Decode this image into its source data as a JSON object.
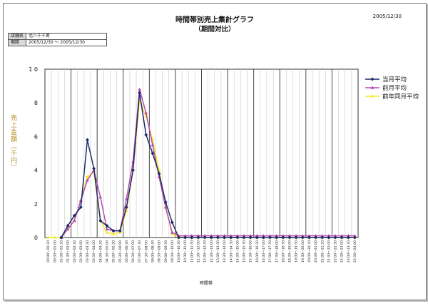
{
  "header": {
    "title": "時間帯別売上集計グラフ",
    "subtitle": "（期間対比）",
    "date": "2005/12/30"
  },
  "info": [
    {
      "label": "店舗名",
      "value": "北八千千男"
    },
    {
      "label": "期間",
      "value": "2005/12/30 ～ 2005/12/30"
    }
  ],
  "chart_data": {
    "type": "line",
    "title": "時間帯別売上集計グラフ",
    "subtitle": "（期間対比）",
    "ylabel": "売上金額（千円）",
    "xlabel": "時間帯",
    "ylim": [
      0,
      10
    ],
    "yticks": [
      "0",
      "2",
      "4",
      "6",
      "8",
      "1 0"
    ],
    "grid": true,
    "legend_position": "right",
    "categories": [
      "00:00～00:30",
      "00:30～01:00",
      "01:00～01:30",
      "01:30～02:00",
      "02:00～02:30",
      "02:30～03:00",
      "03:00～03:30",
      "03:30～04:00",
      "04:00～04:30",
      "04:30～05:00",
      "05:00～05:30",
      "05:30～06:00",
      "06:00～06:30",
      "06:30～07:00",
      "07:00～07:30",
      "07:30～08:00",
      "08:00～08:30",
      "08:30～09:00",
      "09:00～09:30",
      "09:30～10:00",
      "10:00～10:30",
      "10:30～11:00",
      "11:00～11:30",
      "11:30～12:00",
      "12:00～12:30",
      "12:30～13:00",
      "13:00～13:30",
      "13:30～14:00",
      "14:00～14:30",
      "14:30～15:00",
      "15:00～15:30",
      "15:30～16:00",
      "16:00～16:30",
      "16:30～17:00",
      "17:00～17:30",
      "17:30～18:00",
      "18:00～18:30",
      "18:30～19:00",
      "19:00～19:30",
      "19:30～20:00",
      "20:00～20:30",
      "20:30～21:00",
      "21:00～21:30",
      "21:30～22:00",
      "22:00～22:30",
      "22:30～23:00",
      "23:00～23:30",
      "23:30～24:00"
    ],
    "series": [
      {
        "name": "当月平均",
        "color": "#1f2a6b",
        "marker": "diamond",
        "values": [
          null,
          null,
          0,
          0.7,
          1.3,
          1.8,
          5.8,
          4.1,
          1,
          0.7,
          0.4,
          0.4,
          1.8,
          4.0,
          8.6,
          6.1,
          5.0,
          3.8,
          2.1,
          0.9,
          0,
          0,
          0,
          0,
          0,
          0,
          0,
          0,
          0,
          0,
          0,
          0,
          0,
          0,
          0,
          0,
          0,
          0,
          0,
          0,
          0,
          0,
          0,
          0,
          0,
          0,
          0,
          0
        ]
      },
      {
        "name": "前月平均",
        "color": "#b64ab0",
        "marker": "triangle",
        "values": [
          null,
          null,
          0,
          0.5,
          1.0,
          2.2,
          3.4,
          4.0,
          2.4,
          0.5,
          0.4,
          0.4,
          2.3,
          4.5,
          8.8,
          7.4,
          5.5,
          3.6,
          1.8,
          0.3,
          0.1,
          0.1,
          0.1,
          0.1,
          0.1,
          0.1,
          0.1,
          0.1,
          0.1,
          0.1,
          0.1,
          0.1,
          0.1,
          0.1,
          0.1,
          0.1,
          0.1,
          0.1,
          0.1,
          0.1,
          0.1,
          0.1,
          0.1,
          0.1,
          0.1,
          0.1,
          0.1,
          0.1
        ]
      },
      {
        "name": "前年同月平均",
        "color": "#f2ea2a",
        "marker": "star",
        "values": [
          0,
          0,
          0,
          0.5,
          1.0,
          2.2,
          3.6,
          3.9,
          1.0,
          0.3,
          0.2,
          0.3,
          1.6,
          4.0,
          8.1,
          7.2,
          5.8,
          4.0,
          1.8,
          0.2,
          0,
          0,
          0,
          0,
          0,
          0,
          0,
          0,
          0,
          0,
          0,
          0,
          0,
          0,
          0,
          0,
          0,
          0,
          0,
          0,
          0,
          0,
          0,
          0,
          0,
          0,
          0,
          0
        ]
      }
    ]
  }
}
